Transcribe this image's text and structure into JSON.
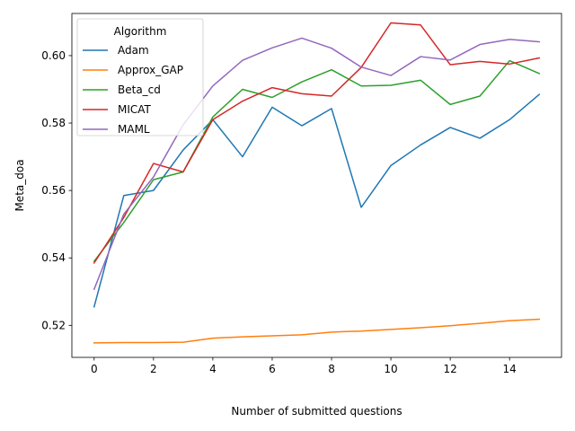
{
  "chart_data": {
    "type": "line",
    "title": "",
    "xlabel": "Number of submitted questions",
    "ylabel": "Meta_doa",
    "xlim": [
      -0.75,
      15.75
    ],
    "ylim": [
      0.5105,
      0.6125
    ],
    "xticks": [
      0,
      2,
      4,
      6,
      8,
      10,
      12,
      14
    ],
    "yticks": [
      0.52,
      0.54,
      0.56,
      0.58,
      0.6
    ],
    "ytick_labels": [
      "0.52",
      "0.54",
      "0.56",
      "0.58",
      "0.60"
    ],
    "grid": false,
    "legend": {
      "title": "Algorithm",
      "placement": "top-left"
    },
    "x": [
      0,
      1,
      2,
      3,
      4,
      5,
      6,
      7,
      8,
      9,
      10,
      11,
      12,
      13,
      14,
      15
    ],
    "series": [
      {
        "name": "Adam",
        "color": "#1f77b4",
        "values": [
          0.5255,
          0.5585,
          0.56,
          0.572,
          0.581,
          0.57,
          0.5847,
          0.5792,
          0.5843,
          0.555,
          0.5674,
          0.5735,
          0.5787,
          0.5755,
          0.581,
          0.5885
        ]
      },
      {
        "name": "Approx_GAP",
        "color": "#ff7f0e",
        "values": [
          0.5148,
          0.5149,
          0.5149,
          0.515,
          0.5162,
          0.5166,
          0.5169,
          0.5172,
          0.518,
          0.5183,
          0.5188,
          0.5193,
          0.5199,
          0.5206,
          0.5214,
          0.5218
        ]
      },
      {
        "name": "Beta_cd",
        "color": "#2ca02c",
        "values": [
          0.539,
          0.5505,
          0.5632,
          0.5655,
          0.5818,
          0.59,
          0.5876,
          0.5922,
          0.5958,
          0.591,
          0.5912,
          0.5927,
          0.5855,
          0.588,
          0.5985,
          0.5947
        ]
      },
      {
        "name": "MICAT",
        "color": "#d62728",
        "values": [
          0.5385,
          0.552,
          0.568,
          0.5655,
          0.581,
          0.5865,
          0.5905,
          0.5887,
          0.588,
          0.5965,
          0.6097,
          0.6091,
          0.5973,
          0.5983,
          0.5975,
          0.5993
        ]
      },
      {
        "name": "MAML",
        "color": "#9467bd",
        "values": [
          0.5307,
          0.553,
          0.564,
          0.5795,
          0.591,
          0.5986,
          0.6023,
          0.6052,
          0.6022,
          0.5966,
          0.5941,
          0.5997,
          0.5987,
          0.6033,
          0.6048,
          0.6041
        ]
      }
    ]
  }
}
